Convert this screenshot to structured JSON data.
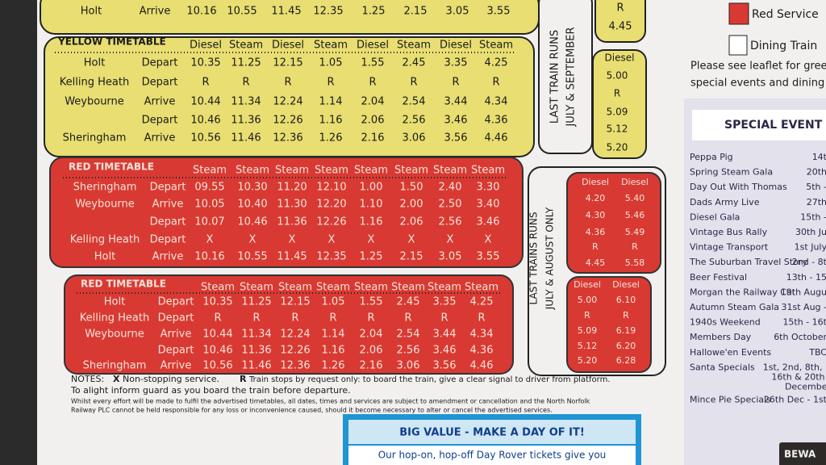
{
  "top_table": {
    "rows": [
      {
        "station": "Holt",
        "event": "Arrive",
        "times": [
          "10.16",
          "10.55",
          "11.45",
          "12.35",
          "1.25",
          "2.15",
          "3.05",
          "3.55"
        ]
      }
    ]
  },
  "yellow_timetable": {
    "title": "YELLOW TIMETABLE",
    "headers": [
      "Diesel",
      "Steam",
      "Diesel",
      "Steam",
      "Diesel",
      "Steam",
      "Diesel",
      "Steam"
    ],
    "rows": [
      {
        "station": "Holt",
        "event": "Depart",
        "times": [
          "10.35",
          "11.25",
          "12.15",
          "1.05",
          "1.55",
          "2.45",
          "3.35",
          "4.25"
        ]
      },
      {
        "station": "Kelling Heath",
        "event": "Depart",
        "times": [
          "R",
          "R",
          "R",
          "R",
          "R",
          "R",
          "R",
          "R"
        ]
      },
      {
        "station": "Weybourne",
        "event": "Arrive",
        "times": [
          "10.44",
          "11.34",
          "12.24",
          "1.14",
          "2.04",
          "2.54",
          "3.44",
          "4.34"
        ]
      },
      {
        "event": "Depart",
        "times": [
          "10.46",
          "11.36",
          "12.26",
          "1.16",
          "2.06",
          "2.56",
          "3.46",
          "4.36"
        ]
      },
      {
        "station": "Sheringham",
        "event": "Arrive",
        "times": [
          "10.56",
          "11.46",
          "12.36",
          "1.26",
          "2.16",
          "3.06",
          "3.56",
          "4.46"
        ]
      }
    ]
  },
  "red_timetable_1": {
    "title": "RED TIMETABLE",
    "headers": [
      "Steam",
      "Steam",
      "Steam",
      "Steam",
      "Steam",
      "Steam",
      "Steam",
      "Steam"
    ],
    "rows": [
      {
        "station": "Sheringham",
        "event": "Depart",
        "times": [
          "09.55",
          "10.30",
          "11.20",
          "12.10",
          "1.00",
          "1.50",
          "2.40",
          "3.30"
        ]
      },
      {
        "station": "Weybourne",
        "event": "Arrive",
        "times": [
          "10.05",
          "10.40",
          "11.30",
          "12.20",
          "1.10",
          "2.00",
          "2.50",
          "3.40"
        ]
      },
      {
        "event": "Depart",
        "times": [
          "10.07",
          "10.46",
          "11.36",
          "12.26",
          "1.16",
          "2.06",
          "2.56",
          "3.46"
        ]
      },
      {
        "station": "Kelling Heath",
        "event": "Depart",
        "times": [
          "X",
          "X",
          "X",
          "X",
          "X",
          "X",
          "X",
          "X"
        ]
      },
      {
        "station": "Holt",
        "event": "Arrive",
        "times": [
          "10.16",
          "10.55",
          "11.45",
          "12.35",
          "1.25",
          "2.15",
          "3.05",
          "3.55"
        ]
      }
    ]
  },
  "red_timetable_2": {
    "title": "RED TIMETABLE",
    "headers": [
      "Steam",
      "Steam",
      "Steam",
      "Steam",
      "Steam",
      "Steam",
      "Steam",
      "Steam"
    ],
    "rows": [
      {
        "station": "Holt",
        "event": "Depart",
        "times": [
          "10.35",
          "11.25",
          "12.15",
          "1.05",
          "1.55",
          "2.45",
          "3.35",
          "4.25"
        ]
      },
      {
        "station": "Kelling Heath",
        "event": "Depart",
        "times": [
          "R",
          "R",
          "R",
          "R",
          "R",
          "R",
          "R",
          "R"
        ]
      },
      {
        "station": "Weybourne",
        "event": "Arrive",
        "times": [
          "10.44",
          "11.34",
          "12.24",
          "1.14",
          "2.04",
          "2.54",
          "3.44",
          "4.34"
        ]
      },
      {
        "event": "Depart",
        "times": [
          "10.46",
          "11.36",
          "12.26",
          "1.16",
          "2.06",
          "2.56",
          "3.46",
          "4.36"
        ]
      },
      {
        "station": "Sheringham",
        "event": "Arrive",
        "times": [
          "10.56",
          "11.46",
          "12.36",
          "1.26",
          "2.16",
          "3.06",
          "3.56",
          "4.46"
        ]
      }
    ]
  },
  "notes": {
    "label": "NOTES:",
    "x_key": "X",
    "x_text": "Non-stopping service.",
    "r_key": "R",
    "r_text": "Train stops by request only: to board the train, give a clear signal to driver from platform.",
    "line2": "To alight inform guard as you board the train before departure.",
    "disclaimer": [
      "Whilst every effort will be made to fulfil the advertised timetables, all dates, times and services are subject to amendment or cancellation and the North Norfolk",
      "Railway PLC cannot be held responsible for any loss or inconvenience caused, should it become necessary to alter or cancel the advertised services."
    ]
  },
  "last_train_july_september": {
    "label": "LAST TRAIN RUNS",
    "label2": "JULY & SEPTEMBER",
    "top_box": [
      "R",
      "4.45"
    ],
    "yellow_box": {
      "header": "Diesel",
      "times": [
        "5.00",
        "R",
        "5.09",
        "5.12",
        "5.20"
      ]
    }
  },
  "last_trains_july_august": {
    "label": "LAST TRAINS RUNS",
    "label2": "JULY & AUGUST ONLY",
    "box1": {
      "headers": [
        "Diesel",
        "Diesel"
      ],
      "rows": [
        [
          "4.20",
          "5.40"
        ],
        [
          "4.30",
          "5.46"
        ],
        [
          "4.36",
          "5.49"
        ],
        [
          "R",
          "R"
        ],
        [
          "4.45",
          "5.58"
        ]
      ]
    },
    "box2": {
      "headers": [
        "Diesel",
        "Diesel"
      ],
      "rows": [
        [
          "5.00",
          "6.10"
        ],
        [
          "R",
          "R"
        ],
        [
          "5.09",
          "6.19"
        ],
        [
          "5.12",
          "6.20"
        ],
        [
          "5.20",
          "6.28"
        ]
      ]
    }
  },
  "legend": {
    "red_service": "Red Service",
    "dining_train": "Dining Train"
  },
  "leaflet_note": [
    "Please see leaflet for gree",
    "special events and dining t"
  ],
  "special_events": {
    "title": "SPECIAL EVENT",
    "events": [
      {
        "name": "Peppa Pig",
        "date": [
          "14t"
        ]
      },
      {
        "name": "Spring Steam Gala",
        "date": [
          "20th"
        ]
      },
      {
        "name": "Day Out With Thomas",
        "date": [
          "5th -"
        ]
      },
      {
        "name": "Dads Army Live",
        "date": [
          "27th"
        ]
      },
      {
        "name": "Diesel Gala",
        "date": [
          "15th -"
        ]
      },
      {
        "name": "Vintage Bus Rally",
        "date": [
          "30th Ju"
        ]
      },
      {
        "name": "Vintage Transport",
        "date": [
          "1st July"
        ]
      },
      {
        "name": "The Suburban Travel Story",
        "date": [
          "2nd - 8t"
        ]
      },
      {
        "name": "Beer Festival",
        "date": [
          "13th - 15"
        ]
      },
      {
        "name": "Morgan the Railway Cat",
        "date": [
          "19th Augu"
        ]
      },
      {
        "name": "Autumn Steam Gala",
        "date": [
          "31st Aug -"
        ]
      },
      {
        "name": "1940s Weekend",
        "date": [
          "15th - 16t"
        ]
      },
      {
        "name": "Members Day",
        "date": [
          "6th October"
        ]
      },
      {
        "name": "Hallowe'en Events",
        "date": [
          "TBC"
        ]
      },
      {
        "name": "Santa Specials",
        "date": [
          "1st, 2nd, 8th, 1",
          "16th & 20th -",
          "December"
        ]
      },
      {
        "name": "Mince Pie Specials",
        "date": [
          "26th Dec - 1st"
        ]
      }
    ]
  },
  "promo": {
    "title": "BIG VALUE - MAKE A DAY OF IT!",
    "text": "Our hop-on, hop-off Day Rover tickets give you"
  },
  "sign": "BEWA"
}
